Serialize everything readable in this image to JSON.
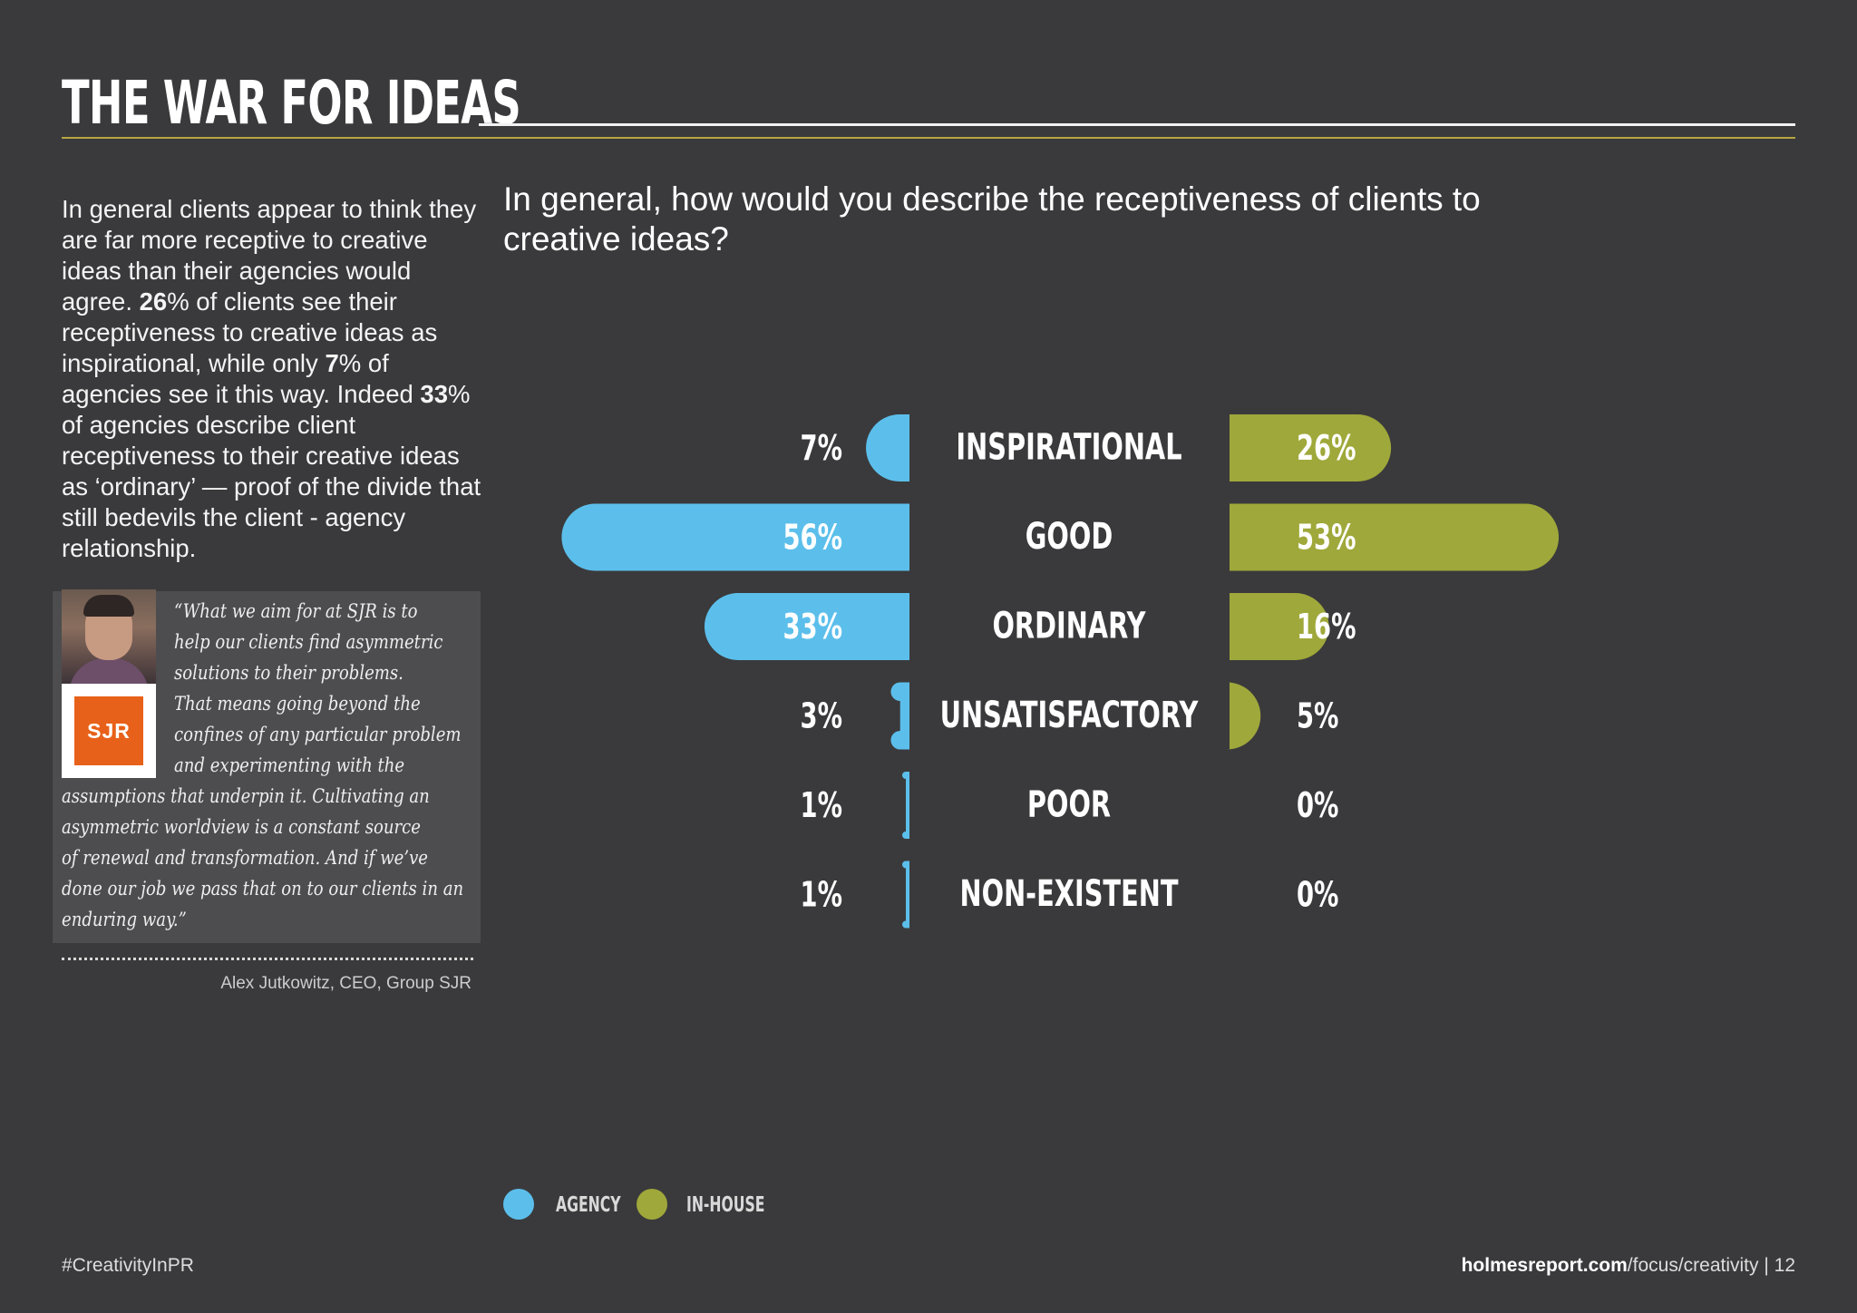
{
  "header": {
    "title": "THE WAR FOR IDEAS"
  },
  "intro": {
    "segments": [
      {
        "text": "In general clients appear to think they are far more receptive to creative ideas than their agencies would agree. ",
        "bold": false
      },
      {
        "text": "26",
        "bold": true
      },
      {
        "text": "% of clients see their receptiveness to creative ideas as inspirational, while only ",
        "bold": false
      },
      {
        "text": "7",
        "bold": true
      },
      {
        "text": "% of agencies see it this way. Indeed ",
        "bold": false
      },
      {
        "text": "33",
        "bold": true
      },
      {
        "text": "% of agencies describe client receptiveness to their creative ideas as ‘ordinary’ — proof of the divide that still bedevils the client - agency relationship.",
        "bold": false
      }
    ]
  },
  "quote": {
    "logo_text": "SJR",
    "lines": [
      "“What we aim for at SJR is to",
      "help our clients find asymmetric",
      "solutions to their problems.",
      "That means going beyond the",
      "confines of any particular problem",
      "and experimenting with the",
      "assumptions that underpin it. Cultivating an",
      "asymmetric worldview is a constant source",
      "of renewal and transformation. And if we’ve",
      "done our job we pass that on to our clients in an",
      "enduring way.”"
    ],
    "attribution": "Alex Jutkowitz, CEO, Group SJR"
  },
  "chart_data": {
    "type": "bar",
    "title": "In general, how would you describe the receptiveness of clients to creative ideas?",
    "categories": [
      "INSPIRATIONAL",
      "GOOD",
      "ORDINARY",
      "UNSATISFACTORY",
      "POOR",
      "NON-EXISTENT"
    ],
    "series": [
      {
        "name": "AGENCY",
        "values": [
          7,
          56,
          33,
          3,
          1,
          1
        ],
        "labels": [
          "7%",
          "56%",
          "33%",
          "3%",
          "1%",
          "1%"
        ],
        "color": "#5cbfeb"
      },
      {
        "name": "IN-HOUSE",
        "values": [
          26,
          53,
          16,
          5,
          0,
          0
        ],
        "labels": [
          "26%",
          "53%",
          "16%",
          "5%",
          "0%",
          "0%"
        ],
        "color": "#9fa83a"
      }
    ],
    "legend_position": "bottom-left"
  },
  "footer": {
    "hashtag": "#CreativityInPR",
    "site_bold": "holmesreport.com",
    "site_path": "/focus/creativity",
    "separator": " | ",
    "page_number": "12"
  }
}
